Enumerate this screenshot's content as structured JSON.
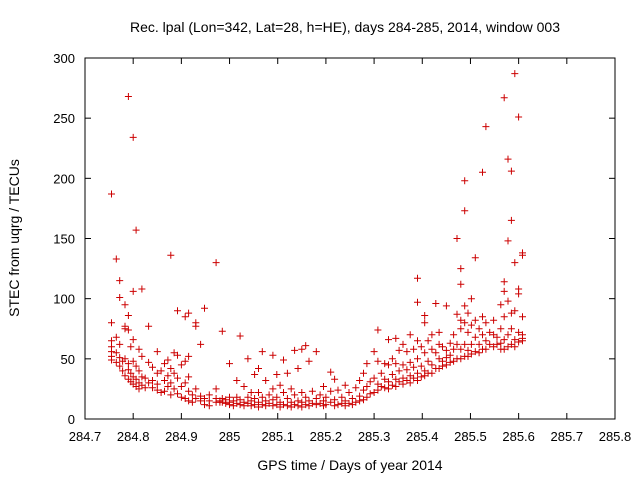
{
  "chart_data": {
    "type": "scatter",
    "title": "Rec. lpal (Lon=342, Lat=28, h=HE), days 284-285, 2014, window 003",
    "xlabel": "GPS time / Days of year 2014",
    "ylabel": "STEC from uqrg / TECUs",
    "xlim": [
      284.7,
      285.8
    ],
    "ylim": [
      0,
      300
    ],
    "xticks": [
      284.7,
      284.8,
      284.9,
      285,
      285.1,
      285.2,
      285.3,
      285.4,
      285.5,
      285.6,
      285.7,
      285.8
    ],
    "xtick_labels": [
      "284.7",
      "284.8",
      "284.9",
      "285",
      "285.1",
      "285.2",
      "285.3",
      "285.4",
      "285.5",
      "285.6",
      "285.7",
      "285.8"
    ],
    "yticks": [
      0,
      50,
      100,
      150,
      200,
      250,
      300
    ],
    "ytick_labels": [
      "0",
      "50",
      "100",
      "150",
      "200",
      "250",
      "300"
    ],
    "grid": false,
    "marker": "plus",
    "marker_color": "#cc0000",
    "points": [
      [
        284.755,
        187
      ],
      [
        284.755,
        80
      ],
      [
        284.755,
        65
      ],
      [
        284.755,
        60
      ],
      [
        284.755,
        56
      ],
      [
        284.755,
        52
      ],
      [
        284.755,
        49
      ],
      [
        284.765,
        133
      ],
      [
        284.765,
        68
      ],
      [
        284.765,
        55
      ],
      [
        284.765,
        47
      ],
      [
        284.772,
        115
      ],
      [
        284.772,
        101
      ],
      [
        284.772,
        62
      ],
      [
        284.772,
        51
      ],
      [
        284.772,
        44
      ],
      [
        284.778,
        48
      ],
      [
        284.778,
        40
      ],
      [
        284.783,
        95
      ],
      [
        284.783,
        77
      ],
      [
        284.783,
        75
      ],
      [
        284.783,
        50
      ],
      [
        284.783,
        36
      ],
      [
        284.79,
        268
      ],
      [
        284.79,
        86
      ],
      [
        284.79,
        74
      ],
      [
        284.79,
        46
      ],
      [
        284.79,
        41
      ],
      [
        284.79,
        33
      ],
      [
        284.795,
        60
      ],
      [
        284.795,
        38
      ],
      [
        284.795,
        31
      ],
      [
        284.8,
        234
      ],
      [
        284.8,
        106
      ],
      [
        284.8,
        66
      ],
      [
        284.8,
        48
      ],
      [
        284.8,
        35
      ],
      [
        284.8,
        29
      ],
      [
        284.806,
        157
      ],
      [
        284.806,
        44
      ],
      [
        284.806,
        33
      ],
      [
        284.806,
        27
      ],
      [
        284.812,
        58
      ],
      [
        284.812,
        40
      ],
      [
        284.812,
        30
      ],
      [
        284.812,
        25
      ],
      [
        284.818,
        108
      ],
      [
        284.818,
        52
      ],
      [
        284.818,
        35
      ],
      [
        284.818,
        28
      ],
      [
        284.825,
        34
      ],
      [
        284.825,
        26
      ],
      [
        284.832,
        77
      ],
      [
        284.832,
        47
      ],
      [
        284.832,
        30
      ],
      [
        284.84,
        43
      ],
      [
        284.84,
        32
      ],
      [
        284.84,
        26
      ],
      [
        284.85,
        56
      ],
      [
        284.85,
        38
      ],
      [
        284.85,
        29
      ],
      [
        284.85,
        24
      ],
      [
        284.858,
        40
      ],
      [
        284.858,
        22
      ],
      [
        284.865,
        46
      ],
      [
        284.865,
        32
      ],
      [
        284.865,
        23
      ],
      [
        284.872,
        49
      ],
      [
        284.872,
        36
      ],
      [
        284.872,
        27
      ],
      [
        284.878,
        136
      ],
      [
        284.878,
        42
      ],
      [
        284.878,
        30
      ],
      [
        284.878,
        20
      ],
      [
        284.885,
        55
      ],
      [
        284.885,
        38
      ],
      [
        284.885,
        25
      ],
      [
        284.892,
        90
      ],
      [
        284.892,
        53
      ],
      [
        284.892,
        34
      ],
      [
        284.892,
        21
      ],
      [
        284.9,
        45
      ],
      [
        284.9,
        27
      ],
      [
        284.9,
        18
      ],
      [
        284.908,
        85
      ],
      [
        284.908,
        48
      ],
      [
        284.908,
        30
      ],
      [
        284.908,
        17
      ],
      [
        284.915,
        88
      ],
      [
        284.915,
        52
      ],
      [
        284.915,
        35
      ],
      [
        284.915,
        23
      ],
      [
        284.915,
        15
      ],
      [
        284.923,
        20
      ],
      [
        284.923,
        14
      ],
      [
        284.93,
        80
      ],
      [
        284.93,
        77
      ],
      [
        284.93,
        25
      ],
      [
        284.93,
        17
      ],
      [
        284.94,
        62
      ],
      [
        284.94,
        19
      ],
      [
        284.94,
        15
      ],
      [
        284.948,
        92
      ],
      [
        284.948,
        17
      ],
      [
        284.948,
        12
      ],
      [
        284.958,
        20
      ],
      [
        284.958,
        15
      ],
      [
        284.958,
        11
      ],
      [
        284.972,
        130
      ],
      [
        284.972,
        25
      ],
      [
        284.972,
        17
      ],
      [
        284.972,
        14
      ],
      [
        284.98,
        15
      ],
      [
        284.98,
        14
      ],
      [
        284.985,
        73
      ],
      [
        284.985,
        17
      ],
      [
        284.985,
        14
      ],
      [
        284.992,
        16
      ],
      [
        284.992,
        13
      ],
      [
        285,
        46
      ],
      [
        285,
        18
      ],
      [
        285,
        14
      ],
      [
        285,
        12
      ],
      [
        285.008,
        15
      ],
      [
        285.008,
        11
      ],
      [
        285.015,
        32
      ],
      [
        285.015,
        18
      ],
      [
        285.015,
        13
      ],
      [
        285.022,
        69
      ],
      [
        285.022,
        16
      ],
      [
        285.022,
        12
      ],
      [
        285.03,
        27
      ],
      [
        285.03,
        14
      ],
      [
        285.03,
        11
      ],
      [
        285.038,
        50
      ],
      [
        285.038,
        18
      ],
      [
        285.038,
        13
      ],
      [
        285.045,
        22
      ],
      [
        285.045,
        15
      ],
      [
        285.045,
        11
      ],
      [
        285.052,
        37
      ],
      [
        285.052,
        17
      ],
      [
        285.052,
        12
      ],
      [
        285.06,
        42
      ],
      [
        285.06,
        22
      ],
      [
        285.06,
        14
      ],
      [
        285.06,
        10
      ],
      [
        285.068,
        56
      ],
      [
        285.068,
        18
      ],
      [
        285.068,
        12
      ],
      [
        285.075,
        32
      ],
      [
        285.075,
        15
      ],
      [
        285.075,
        11
      ],
      [
        285.082,
        20
      ],
      [
        285.082,
        13
      ],
      [
        285.09,
        53
      ],
      [
        285.09,
        25
      ],
      [
        285.09,
        16
      ],
      [
        285.09,
        11
      ],
      [
        285.098,
        37
      ],
      [
        285.098,
        18
      ],
      [
        285.098,
        12
      ],
      [
        285.105,
        28
      ],
      [
        285.105,
        14
      ],
      [
        285.105,
        10
      ],
      [
        285.112,
        49
      ],
      [
        285.112,
        22
      ],
      [
        285.112,
        12
      ],
      [
        285.12,
        38
      ],
      [
        285.12,
        17
      ],
      [
        285.12,
        11
      ],
      [
        285.128,
        25
      ],
      [
        285.128,
        14
      ],
      [
        285.128,
        10
      ],
      [
        285.135,
        57
      ],
      [
        285.135,
        20
      ],
      [
        285.135,
        12
      ],
      [
        285.142,
        42
      ],
      [
        285.142,
        15
      ],
      [
        285.142,
        11
      ],
      [
        285.15,
        58
      ],
      [
        285.15,
        22
      ],
      [
        285.15,
        14
      ],
      [
        285.15,
        10
      ],
      [
        285.158,
        61
      ],
      [
        285.158,
        18
      ],
      [
        285.158,
        12
      ],
      [
        285.165,
        48
      ],
      [
        285.165,
        15
      ],
      [
        285.165,
        11
      ],
      [
        285.172,
        23
      ],
      [
        285.172,
        13
      ],
      [
        285.18,
        56
      ],
      [
        285.18,
        17
      ],
      [
        285.18,
        12
      ],
      [
        285.188,
        20
      ],
      [
        285.188,
        13
      ],
      [
        285.195,
        27
      ],
      [
        285.195,
        15
      ],
      [
        285.195,
        11
      ],
      [
        285.2,
        18
      ],
      [
        285.2,
        12
      ],
      [
        285.21,
        39
      ],
      [
        285.21,
        23
      ],
      [
        285.21,
        14
      ],
      [
        285.218,
        33
      ],
      [
        285.218,
        16
      ],
      [
        285.218,
        11
      ],
      [
        285.225,
        24
      ],
      [
        285.225,
        12
      ],
      [
        285.233,
        18
      ],
      [
        285.233,
        13
      ],
      [
        285.24,
        28
      ],
      [
        285.24,
        15
      ],
      [
        285.24,
        11
      ],
      [
        285.248,
        22
      ],
      [
        285.248,
        13
      ],
      [
        285.255,
        17
      ],
      [
        285.255,
        12
      ],
      [
        285.262,
        26
      ],
      [
        285.262,
        14
      ],
      [
        285.27,
        32
      ],
      [
        285.27,
        19
      ],
      [
        285.27,
        15
      ],
      [
        285.278,
        38
      ],
      [
        285.278,
        24
      ],
      [
        285.278,
        16
      ],
      [
        285.285,
        46
      ],
      [
        285.285,
        27
      ],
      [
        285.285,
        18
      ],
      [
        285.292,
        31
      ],
      [
        285.292,
        21
      ],
      [
        285.3,
        56
      ],
      [
        285.3,
        34
      ],
      [
        285.3,
        22
      ],
      [
        285.308,
        74
      ],
      [
        285.308,
        48
      ],
      [
        285.308,
        29
      ],
      [
        285.308,
        24
      ],
      [
        285.315,
        38
      ],
      [
        285.315,
        27
      ],
      [
        285.322,
        46
      ],
      [
        285.322,
        33
      ],
      [
        285.322,
        26
      ],
      [
        285.33,
        66
      ],
      [
        285.33,
        45
      ],
      [
        285.33,
        31
      ],
      [
        285.33,
        25
      ],
      [
        285.338,
        50
      ],
      [
        285.338,
        37
      ],
      [
        285.338,
        28
      ],
      [
        285.345,
        67
      ],
      [
        285.345,
        46
      ],
      [
        285.345,
        33
      ],
      [
        285.345,
        27
      ],
      [
        285.352,
        57
      ],
      [
        285.352,
        40
      ],
      [
        285.352,
        31
      ],
      [
        285.36,
        62
      ],
      [
        285.36,
        45
      ],
      [
        285.36,
        34
      ],
      [
        285.36,
        29
      ],
      [
        285.368,
        56
      ],
      [
        285.368,
        41
      ],
      [
        285.368,
        32
      ],
      [
        285.375,
        70
      ],
      [
        285.375,
        47
      ],
      [
        285.375,
        36
      ],
      [
        285.375,
        30
      ],
      [
        285.382,
        58
      ],
      [
        285.382,
        43
      ],
      [
        285.382,
        34
      ],
      [
        285.39,
        117
      ],
      [
        285.39,
        97
      ],
      [
        285.39,
        65
      ],
      [
        285.39,
        50
      ],
      [
        285.39,
        38
      ],
      [
        285.39,
        32
      ],
      [
        285.398,
        60
      ],
      [
        285.398,
        44
      ],
      [
        285.398,
        35
      ],
      [
        285.405,
        86
      ],
      [
        285.405,
        80
      ],
      [
        285.405,
        55
      ],
      [
        285.405,
        40
      ],
      [
        285.405,
        36
      ],
      [
        285.412,
        65
      ],
      [
        285.412,
        48
      ],
      [
        285.412,
        38
      ],
      [
        285.42,
        70
      ],
      [
        285.42,
        58
      ],
      [
        285.42,
        45
      ],
      [
        285.42,
        38
      ],
      [
        285.428,
        96
      ],
      [
        285.428,
        55
      ],
      [
        285.428,
        42
      ],
      [
        285.435,
        72
      ],
      [
        285.435,
        62
      ],
      [
        285.435,
        50
      ],
      [
        285.435,
        42
      ],
      [
        285.442,
        60
      ],
      [
        285.442,
        48
      ],
      [
        285.442,
        44
      ],
      [
        285.45,
        94
      ],
      [
        285.45,
        57
      ],
      [
        285.45,
        51
      ],
      [
        285.45,
        45
      ],
      [
        285.458,
        63
      ],
      [
        285.458,
        53
      ],
      [
        285.458,
        47
      ],
      [
        285.465,
        70
      ],
      [
        285.465,
        58
      ],
      [
        285.465,
        48
      ],
      [
        285.472,
        150
      ],
      [
        285.472,
        87
      ],
      [
        285.472,
        62
      ],
      [
        285.472,
        50
      ],
      [
        285.48,
        125
      ],
      [
        285.48,
        112
      ],
      [
        285.48,
        82
      ],
      [
        285.48,
        75
      ],
      [
        285.48,
        58
      ],
      [
        285.48,
        50
      ],
      [
        285.488,
        198
      ],
      [
        285.488,
        173
      ],
      [
        285.488,
        94
      ],
      [
        285.488,
        80
      ],
      [
        285.488,
        62
      ],
      [
        285.488,
        52
      ],
      [
        285.495,
        88
      ],
      [
        285.495,
        72
      ],
      [
        285.495,
        57
      ],
      [
        285.495,
        52
      ],
      [
        285.502,
        100
      ],
      [
        285.502,
        78
      ],
      [
        285.502,
        62
      ],
      [
        285.502,
        54
      ],
      [
        285.51,
        134
      ],
      [
        285.51,
        82
      ],
      [
        285.51,
        68
      ],
      [
        285.51,
        56
      ],
      [
        285.518,
        75
      ],
      [
        285.518,
        62
      ],
      [
        285.518,
        55
      ],
      [
        285.525,
        205
      ],
      [
        285.525,
        85
      ],
      [
        285.525,
        70
      ],
      [
        285.525,
        58
      ],
      [
        285.532,
        243
      ],
      [
        285.532,
        80
      ],
      [
        285.532,
        65
      ],
      [
        285.532,
        58
      ],
      [
        285.54,
        72
      ],
      [
        285.54,
        62
      ],
      [
        285.548,
        82
      ],
      [
        285.548,
        70
      ],
      [
        285.548,
        60
      ],
      [
        285.555,
        68
      ],
      [
        285.555,
        62
      ],
      [
        285.563,
        95
      ],
      [
        285.563,
        75
      ],
      [
        285.563,
        63
      ],
      [
        285.563,
        58
      ],
      [
        285.57,
        267
      ],
      [
        285.57,
        114
      ],
      [
        285.57,
        106
      ],
      [
        285.57,
        85
      ],
      [
        285.57,
        66
      ],
      [
        285.57,
        58
      ],
      [
        285.578,
        216
      ],
      [
        285.578,
        148
      ],
      [
        285.578,
        98
      ],
      [
        285.578,
        70
      ],
      [
        285.578,
        60
      ],
      [
        285.585,
        206
      ],
      [
        285.585,
        165
      ],
      [
        285.585,
        88
      ],
      [
        285.585,
        75
      ],
      [
        285.585,
        62
      ],
      [
        285.592,
        287
      ],
      [
        285.592,
        130
      ],
      [
        285.592,
        90
      ],
      [
        285.592,
        66
      ],
      [
        285.592,
        60
      ],
      [
        285.6,
        251
      ],
      [
        285.6,
        108
      ],
      [
        285.6,
        104
      ],
      [
        285.6,
        72
      ],
      [
        285.6,
        64
      ],
      [
        285.608,
        138
      ],
      [
        285.608,
        136
      ],
      [
        285.608,
        85
      ],
      [
        285.608,
        70
      ],
      [
        285.608,
        67
      ],
      [
        285.608,
        65
      ]
    ]
  }
}
